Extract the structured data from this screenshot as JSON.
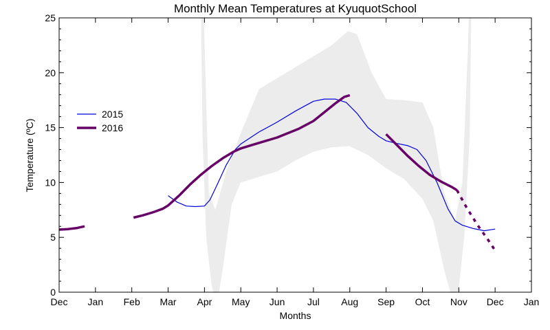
{
  "chart_data": {
    "type": "line",
    "title": "Monthly Mean Temperatures at KyuquotSchool",
    "xlabel": "Months",
    "ylabel": "Temperature (ºC)",
    "ylim": [
      0,
      25
    ],
    "xlim": [
      0,
      13
    ],
    "yticks": [
      0,
      5,
      10,
      15,
      20,
      25
    ],
    "x_ticks": [
      {
        "x": 0,
        "label": "Dec"
      },
      {
        "x": 1,
        "label": "Jan"
      },
      {
        "x": 2,
        "label": "Feb"
      },
      {
        "x": 3,
        "label": "Mar"
      },
      {
        "x": 4,
        "label": "Apr"
      },
      {
        "x": 5,
        "label": "May"
      },
      {
        "x": 6,
        "label": "Jun"
      },
      {
        "x": 7,
        "label": "Jul"
      },
      {
        "x": 8,
        "label": "Aug"
      },
      {
        "x": 9,
        "label": "Sep"
      },
      {
        "x": 10,
        "label": "Oct"
      },
      {
        "x": 11,
        "label": "Nov"
      },
      {
        "x": 12,
        "label": "Dec"
      },
      {
        "x": 13,
        "label": "Jan"
      }
    ],
    "legend": {
      "position": "left"
    },
    "range_band": {
      "color": "#ececec",
      "upper": [
        [
          0,
          40
        ],
        [
          3.85,
          40
        ],
        [
          4.0,
          23
        ],
        [
          4.12,
          9
        ],
        [
          4.3,
          7.5
        ],
        [
          4.6,
          11
        ],
        [
          5.0,
          14.5
        ],
        [
          5.5,
          18.5
        ],
        [
          6.0,
          19.5
        ],
        [
          6.5,
          20.5
        ],
        [
          7.0,
          21.5
        ],
        [
          7.5,
          22.5
        ],
        [
          7.95,
          23.8
        ],
        [
          8.2,
          23.5
        ],
        [
          8.6,
          20
        ],
        [
          9.0,
          17.6
        ],
        [
          9.5,
          17.5
        ],
        [
          10.0,
          17.3
        ],
        [
          10.3,
          15
        ],
        [
          10.6,
          9
        ],
        [
          10.9,
          6.5
        ],
        [
          11.1,
          10
        ],
        [
          11.25,
          22
        ],
        [
          11.4,
          40
        ],
        [
          13,
          40
        ]
      ],
      "lower": [
        [
          0,
          40
        ],
        [
          3.85,
          40
        ],
        [
          3.95,
          14
        ],
        [
          4.05,
          5
        ],
        [
          4.2,
          0.5
        ],
        [
          4.35,
          -1
        ],
        [
          4.5,
          2
        ],
        [
          4.75,
          8
        ],
        [
          5.0,
          10
        ],
        [
          5.5,
          10.5
        ],
        [
          6.0,
          11
        ],
        [
          6.5,
          12
        ],
        [
          7.0,
          12.8
        ],
        [
          7.5,
          13.2
        ],
        [
          8.0,
          13.3
        ],
        [
          8.5,
          12.5
        ],
        [
          9.0,
          11.3
        ],
        [
          9.5,
          10.3
        ],
        [
          10.0,
          8.5
        ],
        [
          10.3,
          6.5
        ],
        [
          10.6,
          2
        ],
        [
          10.85,
          -1
        ],
        [
          11.0,
          0.3
        ],
        [
          11.15,
          5
        ],
        [
          11.3,
          14
        ],
        [
          11.4,
          40
        ],
        [
          13,
          40
        ]
      ]
    },
    "series": [
      {
        "name": "2015",
        "color": "#0000dd",
        "width": 1.2,
        "segments": [
          {
            "dashed": false,
            "points": [
              [
                3.0,
                8.8
              ],
              [
                3.25,
                8.2
              ],
              [
                3.5,
                7.85
              ],
              [
                3.75,
                7.8
              ],
              [
                4.0,
                7.85
              ],
              [
                4.15,
                8.4
              ],
              [
                4.35,
                9.8
              ],
              [
                4.6,
                11.6
              ],
              [
                4.85,
                13.0
              ],
              [
                5.0,
                13.5
              ],
              [
                5.5,
                14.6
              ],
              [
                6.0,
                15.5
              ],
              [
                6.5,
                16.5
              ],
              [
                7.0,
                17.4
              ],
              [
                7.3,
                17.6
              ],
              [
                7.6,
                17.6
              ],
              [
                7.9,
                17.3
              ],
              [
                8.2,
                16.3
              ],
              [
                8.5,
                15.0
              ],
              [
                8.8,
                14.2
              ],
              [
                9.0,
                13.8
              ],
              [
                9.3,
                13.55
              ],
              [
                9.6,
                13.35
              ],
              [
                9.85,
                13.0
              ],
              [
                10.1,
                12.0
              ],
              [
                10.4,
                10.0
              ],
              [
                10.7,
                7.6
              ],
              [
                10.9,
                6.5
              ],
              [
                11.1,
                6.1
              ],
              [
                11.4,
                5.8
              ],
              [
                11.7,
                5.6
              ],
              [
                12.0,
                5.75
              ]
            ]
          }
        ]
      },
      {
        "name": "2016",
        "color": "#660066",
        "width": 3.5,
        "segments": [
          {
            "dashed": false,
            "points": [
              [
                0.0,
                5.7
              ],
              [
                0.25,
                5.75
              ],
              [
                0.5,
                5.85
              ],
              [
                0.7,
                6.0
              ]
            ]
          },
          {
            "dashed": false,
            "points": [
              [
                2.05,
                6.8
              ],
              [
                2.3,
                7.0
              ],
              [
                2.6,
                7.3
              ],
              [
                2.85,
                7.6
              ],
              [
                3.0,
                7.9
              ],
              [
                3.3,
                8.8
              ],
              [
                3.6,
                9.8
              ],
              [
                3.9,
                10.7
              ],
              [
                4.2,
                11.5
              ],
              [
                4.5,
                12.2
              ],
              [
                4.8,
                12.8
              ],
              [
                5.0,
                13.1
              ],
              [
                5.3,
                13.4
              ],
              [
                5.6,
                13.7
              ],
              [
                6.0,
                14.1
              ],
              [
                6.3,
                14.5
              ],
              [
                6.6,
                14.9
              ],
              [
                7.0,
                15.6
              ],
              [
                7.3,
                16.4
              ],
              [
                7.6,
                17.2
              ],
              [
                7.85,
                17.8
              ],
              [
                8.0,
                17.95
              ]
            ]
          },
          {
            "dashed": false,
            "points": [
              [
                9.0,
                14.4
              ],
              [
                9.3,
                13.4
              ],
              [
                9.6,
                12.4
              ],
              [
                9.9,
                11.5
              ],
              [
                10.2,
                10.7
              ],
              [
                10.5,
                10.1
              ],
              [
                10.8,
                9.6
              ],
              [
                10.95,
                9.3
              ]
            ]
          },
          {
            "dashed": true,
            "points": [
              [
                10.95,
                9.3
              ],
              [
                11.2,
                7.8
              ],
              [
                11.5,
                6.2
              ],
              [
                11.8,
                4.8
              ],
              [
                12.0,
                3.8
              ]
            ]
          }
        ]
      }
    ]
  }
}
